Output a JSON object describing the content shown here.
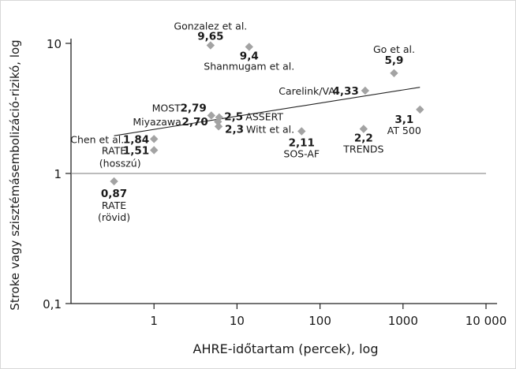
{
  "chart_data": {
    "type": "scatter",
    "xlabel": "AHRE-időtartam (percek), log",
    "ylabel": "Stroke vagy szisztémásembolizáció-rizikó, log",
    "xscale": "log",
    "yscale": "log",
    "xlim": [
      0.1,
      10000
    ],
    "ylim": [
      0.1,
      10
    ],
    "x_ticks": [
      {
        "value": 1,
        "label": "1"
      },
      {
        "value": 10,
        "label": "10"
      },
      {
        "value": 100,
        "label": "100"
      },
      {
        "value": 1000,
        "label": "1000"
      },
      {
        "value": 10000,
        "label": "10 000"
      }
    ],
    "y_ticks": [
      {
        "value": 0.1,
        "label": "0,1"
      },
      {
        "value": 1,
        "label": "1"
      },
      {
        "value": 10,
        "label": "10"
      }
    ],
    "reference_line_y": 1,
    "grid": false,
    "marker_color": "#a3a3a3",
    "trend_line": {
      "x": [
        0.33,
        1600
      ],
      "y": [
        1.95,
        4.6
      ]
    },
    "points": [
      {
        "x": 4.8,
        "y": 9.65,
        "study": "Gonzalez et al.",
        "value": "9,65"
      },
      {
        "x": 14,
        "y": 9.4,
        "study": "Shanmugam et al.",
        "value": "9,4"
      },
      {
        "x": 780,
        "y": 5.9,
        "study": "Go et al.",
        "value": "5,9"
      },
      {
        "x": 350,
        "y": 4.33,
        "study": "Carelink/VA",
        "value": "4,33"
      },
      {
        "x": 1600,
        "y": 3.1,
        "study": "AT 500",
        "value": "3,1"
      },
      {
        "x": 4.9,
        "y": 2.79,
        "study": "MOST",
        "value": "2,79"
      },
      {
        "x": 5.9,
        "y": 2.5,
        "study": "ASSERT",
        "value": "2,5"
      },
      {
        "x": 6.0,
        "y": 2.3,
        "study": "Witt et al.",
        "value": "2,3"
      },
      {
        "x": 6.1,
        "y": 2.7,
        "study": "Miyazawa",
        "value": "2,70"
      },
      {
        "x": 60,
        "y": 2.11,
        "study": "SOS-AF",
        "value": "2,11"
      },
      {
        "x": 335,
        "y": 2.2,
        "study": "TRENDS",
        "value": "2,2"
      },
      {
        "x": 1.0,
        "y": 1.84,
        "study": "Chen et al.",
        "value": "1,84"
      },
      {
        "x": 1.0,
        "y": 1.51,
        "study": "RATE (hosszú)",
        "value": "1,51"
      },
      {
        "x": 0.33,
        "y": 0.87,
        "study": "RATE (rövid)",
        "value": "0,87"
      }
    ],
    "labels": [
      {
        "text": "Gonzalez et al.",
        "x": 4.8,
        "y": 9.65,
        "dx": 0,
        "dy": -20,
        "anchor": "middle",
        "bold": false
      },
      {
        "text": "9,65",
        "x": 4.8,
        "y": 9.65,
        "dx": 0,
        "dy": -7,
        "anchor": "middle",
        "bold": true
      },
      {
        "text": "9,4",
        "x": 14,
        "y": 9.4,
        "dx": 0,
        "dy": 16,
        "anchor": "middle",
        "bold": true
      },
      {
        "text": "Shanmugam et al.",
        "x": 14,
        "y": 9.4,
        "dx": 0,
        "dy": 29,
        "anchor": "middle",
        "bold": false
      },
      {
        "text": "Go et al.",
        "x": 780,
        "y": 5.9,
        "dx": 0,
        "dy": -26,
        "anchor": "middle",
        "bold": false
      },
      {
        "text": "5,9",
        "x": 780,
        "y": 5.9,
        "dx": 0,
        "dy": -12,
        "anchor": "middle",
        "bold": true
      },
      {
        "text": "Carelink/VA",
        "x": 350,
        "y": 4.33,
        "dx": -38,
        "dy": 5,
        "anchor": "end",
        "bold": false
      },
      {
        "text": "4,33",
        "x": 350,
        "y": 4.33,
        "dx": -8,
        "dy": 5,
        "anchor": "end",
        "bold": true
      },
      {
        "text": "3,1",
        "x": 1600,
        "y": 3.1,
        "dx": -20,
        "dy": 17,
        "anchor": "middle",
        "bold": true
      },
      {
        "text": "AT 500",
        "x": 1600,
        "y": 3.1,
        "dx": -20,
        "dy": 31,
        "anchor": "middle",
        "bold": false
      },
      {
        "text": "MOST",
        "x": 4.9,
        "y": 2.79,
        "dx": -39,
        "dy": -5,
        "anchor": "end",
        "bold": false
      },
      {
        "text": "2,79",
        "x": 4.9,
        "y": 2.79,
        "dx": -6,
        "dy": -5,
        "anchor": "end",
        "bold": true
      },
      {
        "text": "Miyazawa",
        "x": 6.1,
        "y": 2.7,
        "dx": -48,
        "dy": 10,
        "anchor": "end",
        "bold": false
      },
      {
        "text": "2,70",
        "x": 6.1,
        "y": 2.7,
        "dx": -14,
        "dy": 10,
        "anchor": "end",
        "bold": true
      },
      {
        "text": "2,5",
        "x": 5.9,
        "y": 2.5,
        "dx": 8,
        "dy": -2,
        "anchor": "start",
        "bold": true
      },
      {
        "text": "ASSERT",
        "x": 5.9,
        "y": 2.5,
        "dx": 35,
        "dy": -2,
        "anchor": "start",
        "bold": false
      },
      {
        "text": "2,3",
        "x": 6.0,
        "y": 2.3,
        "dx": 8,
        "dy": 8,
        "anchor": "start",
        "bold": true
      },
      {
        "text": "Witt et al.",
        "x": 6.0,
        "y": 2.3,
        "dx": 35,
        "dy": 8,
        "anchor": "start",
        "bold": false
      },
      {
        "text": "2,11",
        "x": 60,
        "y": 2.11,
        "dx": 0,
        "dy": 19,
        "anchor": "middle",
        "bold": true
      },
      {
        "text": "SOS-AF",
        "x": 60,
        "y": 2.11,
        "dx": 0,
        "dy": 33,
        "anchor": "middle",
        "bold": false
      },
      {
        "text": "2,2",
        "x": 335,
        "y": 2.2,
        "dx": 0,
        "dy": 16,
        "anchor": "middle",
        "bold": true
      },
      {
        "text": "TRENDS",
        "x": 335,
        "y": 2.2,
        "dx": 0,
        "dy": 30,
        "anchor": "middle",
        "bold": false
      },
      {
        "text": "Chen et al.",
        "x": 1.0,
        "y": 1.84,
        "dx": -38,
        "dy": 5,
        "anchor": "end",
        "bold": false
      },
      {
        "text": "1,84",
        "x": 1.0,
        "y": 1.84,
        "dx": -6,
        "dy": 5,
        "anchor": "end",
        "bold": true
      },
      {
        "text": "RATE",
        "x": 1.0,
        "y": 1.51,
        "dx": -35,
        "dy": 5,
        "anchor": "end",
        "bold": false
      },
      {
        "text": "1,51",
        "x": 1.0,
        "y": 1.51,
        "dx": -6,
        "dy": 5,
        "anchor": "end",
        "bold": true
      },
      {
        "text": "(hosszú)",
        "x": 1.0,
        "y": 1.51,
        "dx": -43,
        "dy": 21,
        "anchor": "middle",
        "bold": false
      },
      {
        "text": "0,87",
        "x": 0.33,
        "y": 0.87,
        "dx": 0,
        "dy": 20,
        "anchor": "middle",
        "bold": true
      },
      {
        "text": "RATE",
        "x": 0.33,
        "y": 0.87,
        "dx": 0,
        "dy": 35,
        "anchor": "middle",
        "bold": false
      },
      {
        "text": "(rövid)",
        "x": 0.33,
        "y": 0.87,
        "dx": 0,
        "dy": 50,
        "anchor": "middle",
        "bold": false
      }
    ]
  }
}
